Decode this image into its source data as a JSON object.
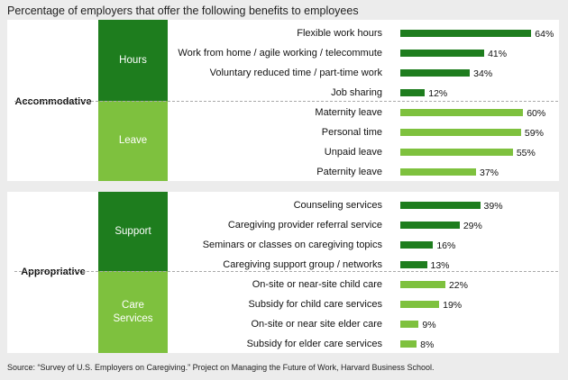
{
  "title": "Percentage of employers that offer the following benefits to employees",
  "source": "Source: “Survey of U.S. Employers on Caregiving.” Project on Managing the Future of Work, Harvard Business School.",
  "colors": {
    "dark_green": "#1e7d1e",
    "light_green": "#7ec13e",
    "background": "#ececec",
    "panel": "#ffffff"
  },
  "chart_data": {
    "type": "bar",
    "orientation": "horizontal",
    "title": "Percentage of employers that offer the following benefits to employees",
    "value_suffix": "%",
    "xlim": [
      0,
      64
    ],
    "grid": false,
    "groups": [
      {
        "name": "Accommodative",
        "categories": [
          {
            "name": "Hours",
            "color": "#1e7d1e",
            "items": [
              {
                "label": "Flexible work hours",
                "value": 64
              },
              {
                "label": "Work from home / agile working / telecommute",
                "value": 41
              },
              {
                "label": "Voluntary reduced time / part-time work",
                "value": 34
              },
              {
                "label": "Job sharing",
                "value": 12
              }
            ]
          },
          {
            "name": "Leave",
            "color": "#7ec13e",
            "items": [
              {
                "label": "Maternity leave",
                "value": 60
              },
              {
                "label": "Personal time",
                "value": 59
              },
              {
                "label": "Unpaid leave",
                "value": 55
              },
              {
                "label": "Paternity leave",
                "value": 37
              }
            ]
          }
        ]
      },
      {
        "name": "Appropriative",
        "categories": [
          {
            "name": "Support",
            "color": "#1e7d1e",
            "items": [
              {
                "label": "Counseling services",
                "value": 39
              },
              {
                "label": "Caregiving provider referral service",
                "value": 29
              },
              {
                "label": "Seminars or classes on caregiving topics",
                "value": 16
              },
              {
                "label": "Caregiving support group / networks",
                "value": 13
              }
            ]
          },
          {
            "name": "Care\nServices",
            "color": "#7ec13e",
            "items": [
              {
                "label": "On-site or near-site child care",
                "value": 22
              },
              {
                "label": "Subsidy for child care services",
                "value": 19
              },
              {
                "label": "On-site or near site elder care",
                "value": 9
              },
              {
                "label": "Subsidy for elder care services",
                "value": 8
              }
            ]
          }
        ]
      }
    ]
  }
}
